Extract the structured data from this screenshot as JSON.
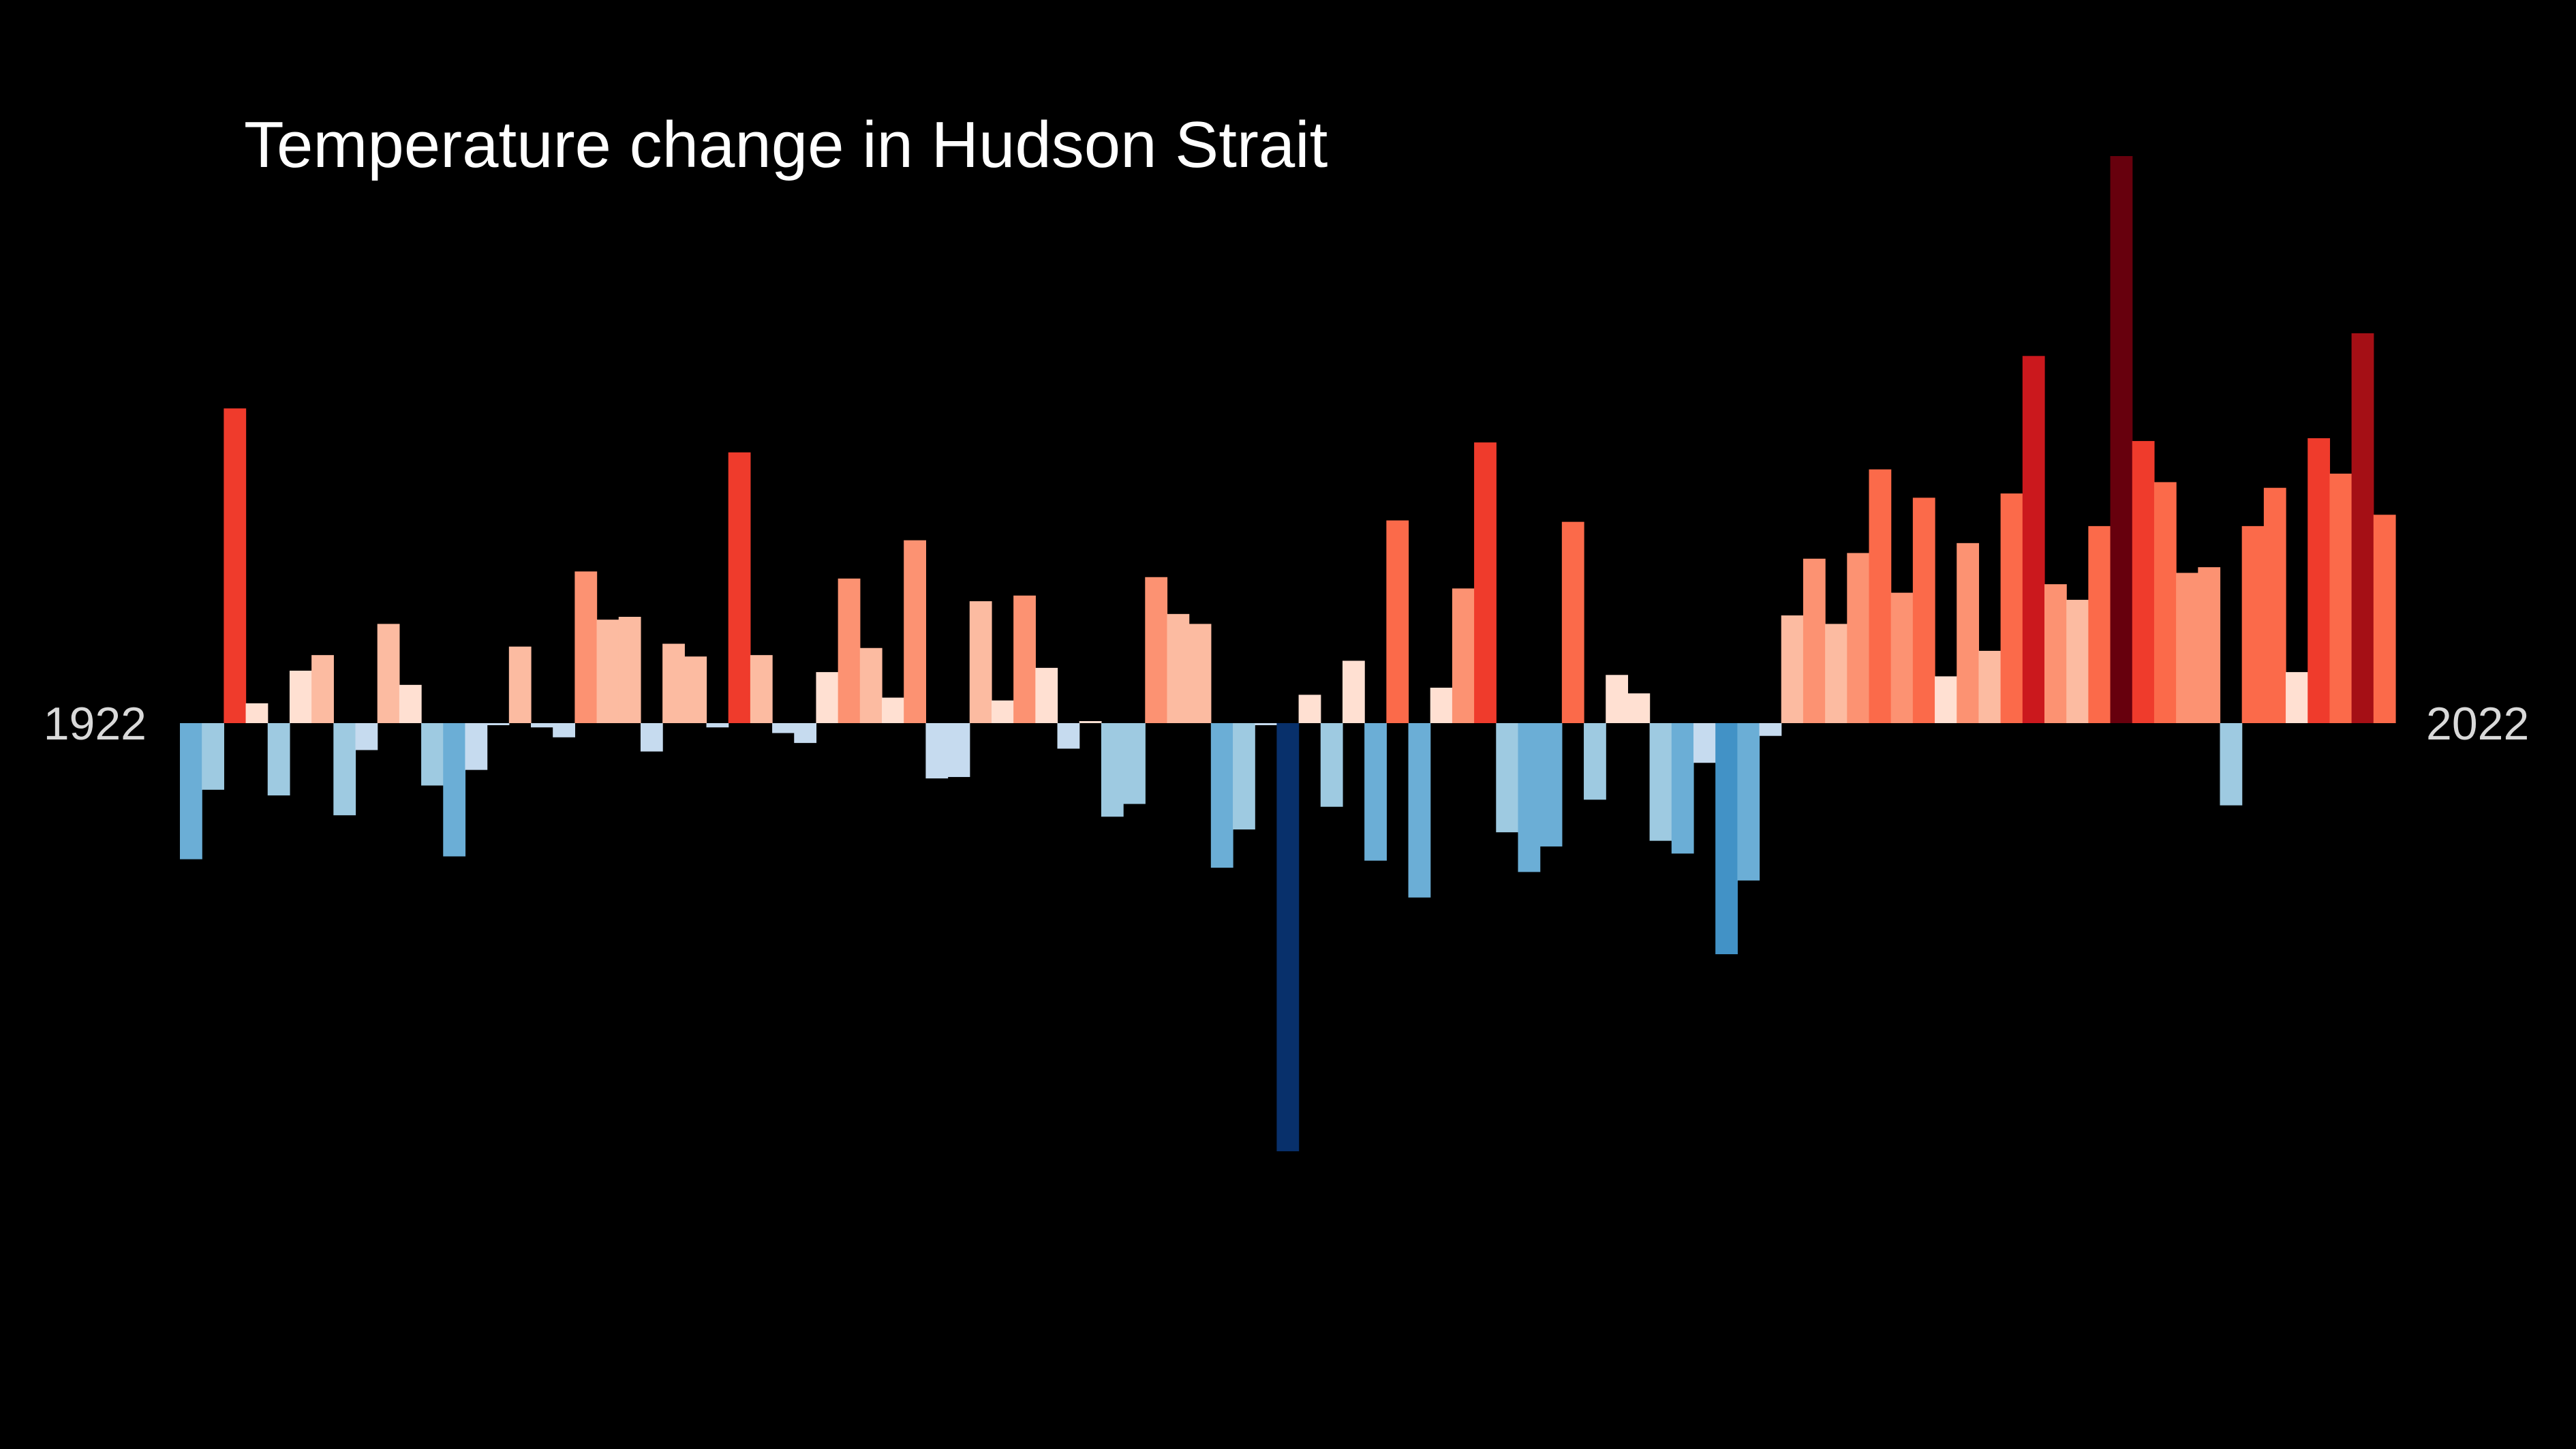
{
  "chart_data": {
    "type": "bar",
    "title": "Temperature change in Hudson Strait",
    "x_start": 1922,
    "x_end": 2022,
    "start_label": "1922",
    "end_label": "2022",
    "x": [
      1922,
      1923,
      1924,
      1925,
      1926,
      1927,
      1928,
      1929,
      1930,
      1931,
      1932,
      1933,
      1934,
      1935,
      1936,
      1937,
      1938,
      1939,
      1940,
      1941,
      1942,
      1943,
      1944,
      1945,
      1946,
      1947,
      1948,
      1949,
      1950,
      1951,
      1952,
      1953,
      1954,
      1955,
      1956,
      1957,
      1958,
      1959,
      1960,
      1961,
      1962,
      1963,
      1964,
      1965,
      1966,
      1967,
      1968,
      1969,
      1970,
      1971,
      1972,
      1973,
      1974,
      1975,
      1976,
      1977,
      1978,
      1979,
      1980,
      1981,
      1982,
      1983,
      1984,
      1985,
      1986,
      1987,
      1988,
      1989,
      1990,
      1991,
      1992,
      1993,
      1994,
      1995,
      1996,
      1997,
      1998,
      1999,
      2000,
      2001,
      2002,
      2003,
      2004,
      2005,
      2006,
      2007,
      2008,
      2009,
      2010,
      2011,
      2012,
      2013,
      2014,
      2015,
      2016,
      2017,
      2018,
      2019,
      2020,
      2021,
      2022
    ],
    "values": [
      -0.96,
      -0.47,
      2.22,
      0.14,
      -0.51,
      0.37,
      0.48,
      -0.65,
      -0.19,
      0.7,
      0.27,
      -0.44,
      -0.94,
      -0.33,
      -0.01,
      0.54,
      -0.03,
      -0.1,
      1.07,
      0.73,
      0.75,
      -0.2,
      0.56,
      0.47,
      -0.03,
      1.91,
      0.48,
      -0.07,
      -0.14,
      0.36,
      1.02,
      0.53,
      0.18,
      1.29,
      -0.39,
      -0.38,
      0.86,
      0.16,
      0.9,
      0.39,
      -0.18,
      0.0,
      -0.66,
      -0.57,
      1.03,
      0.77,
      0.7,
      -1.02,
      -0.75,
      -0.01,
      -3.02,
      0.2,
      -0.59,
      0.44,
      -0.97,
      1.43,
      -1.23,
      0.25,
      0.95,
      1.98,
      -0.77,
      -1.05,
      -0.87,
      1.42,
      -0.54,
      0.34,
      0.21,
      -0.83,
      -0.92,
      -0.28,
      -1.63,
      -1.11,
      -0.09,
      0.76,
      1.16,
      0.7,
      1.2,
      1.79,
      0.92,
      1.59,
      0.33,
      1.27,
      0.51,
      1.62,
      2.59,
      0.98,
      0.87,
      1.39,
      4.0,
      1.99,
      1.7,
      1.06,
      1.1,
      -0.58,
      1.39,
      1.66,
      0.36,
      2.01,
      1.76,
      2.75,
      1.47
    ],
    "ylim": [
      -3.6,
      4.4
    ],
    "grid": false,
    "legend": "none",
    "colors": {
      "background": "#000000",
      "title": "#ffffff",
      "year_labels": "#d9d9d9"
    }
  }
}
